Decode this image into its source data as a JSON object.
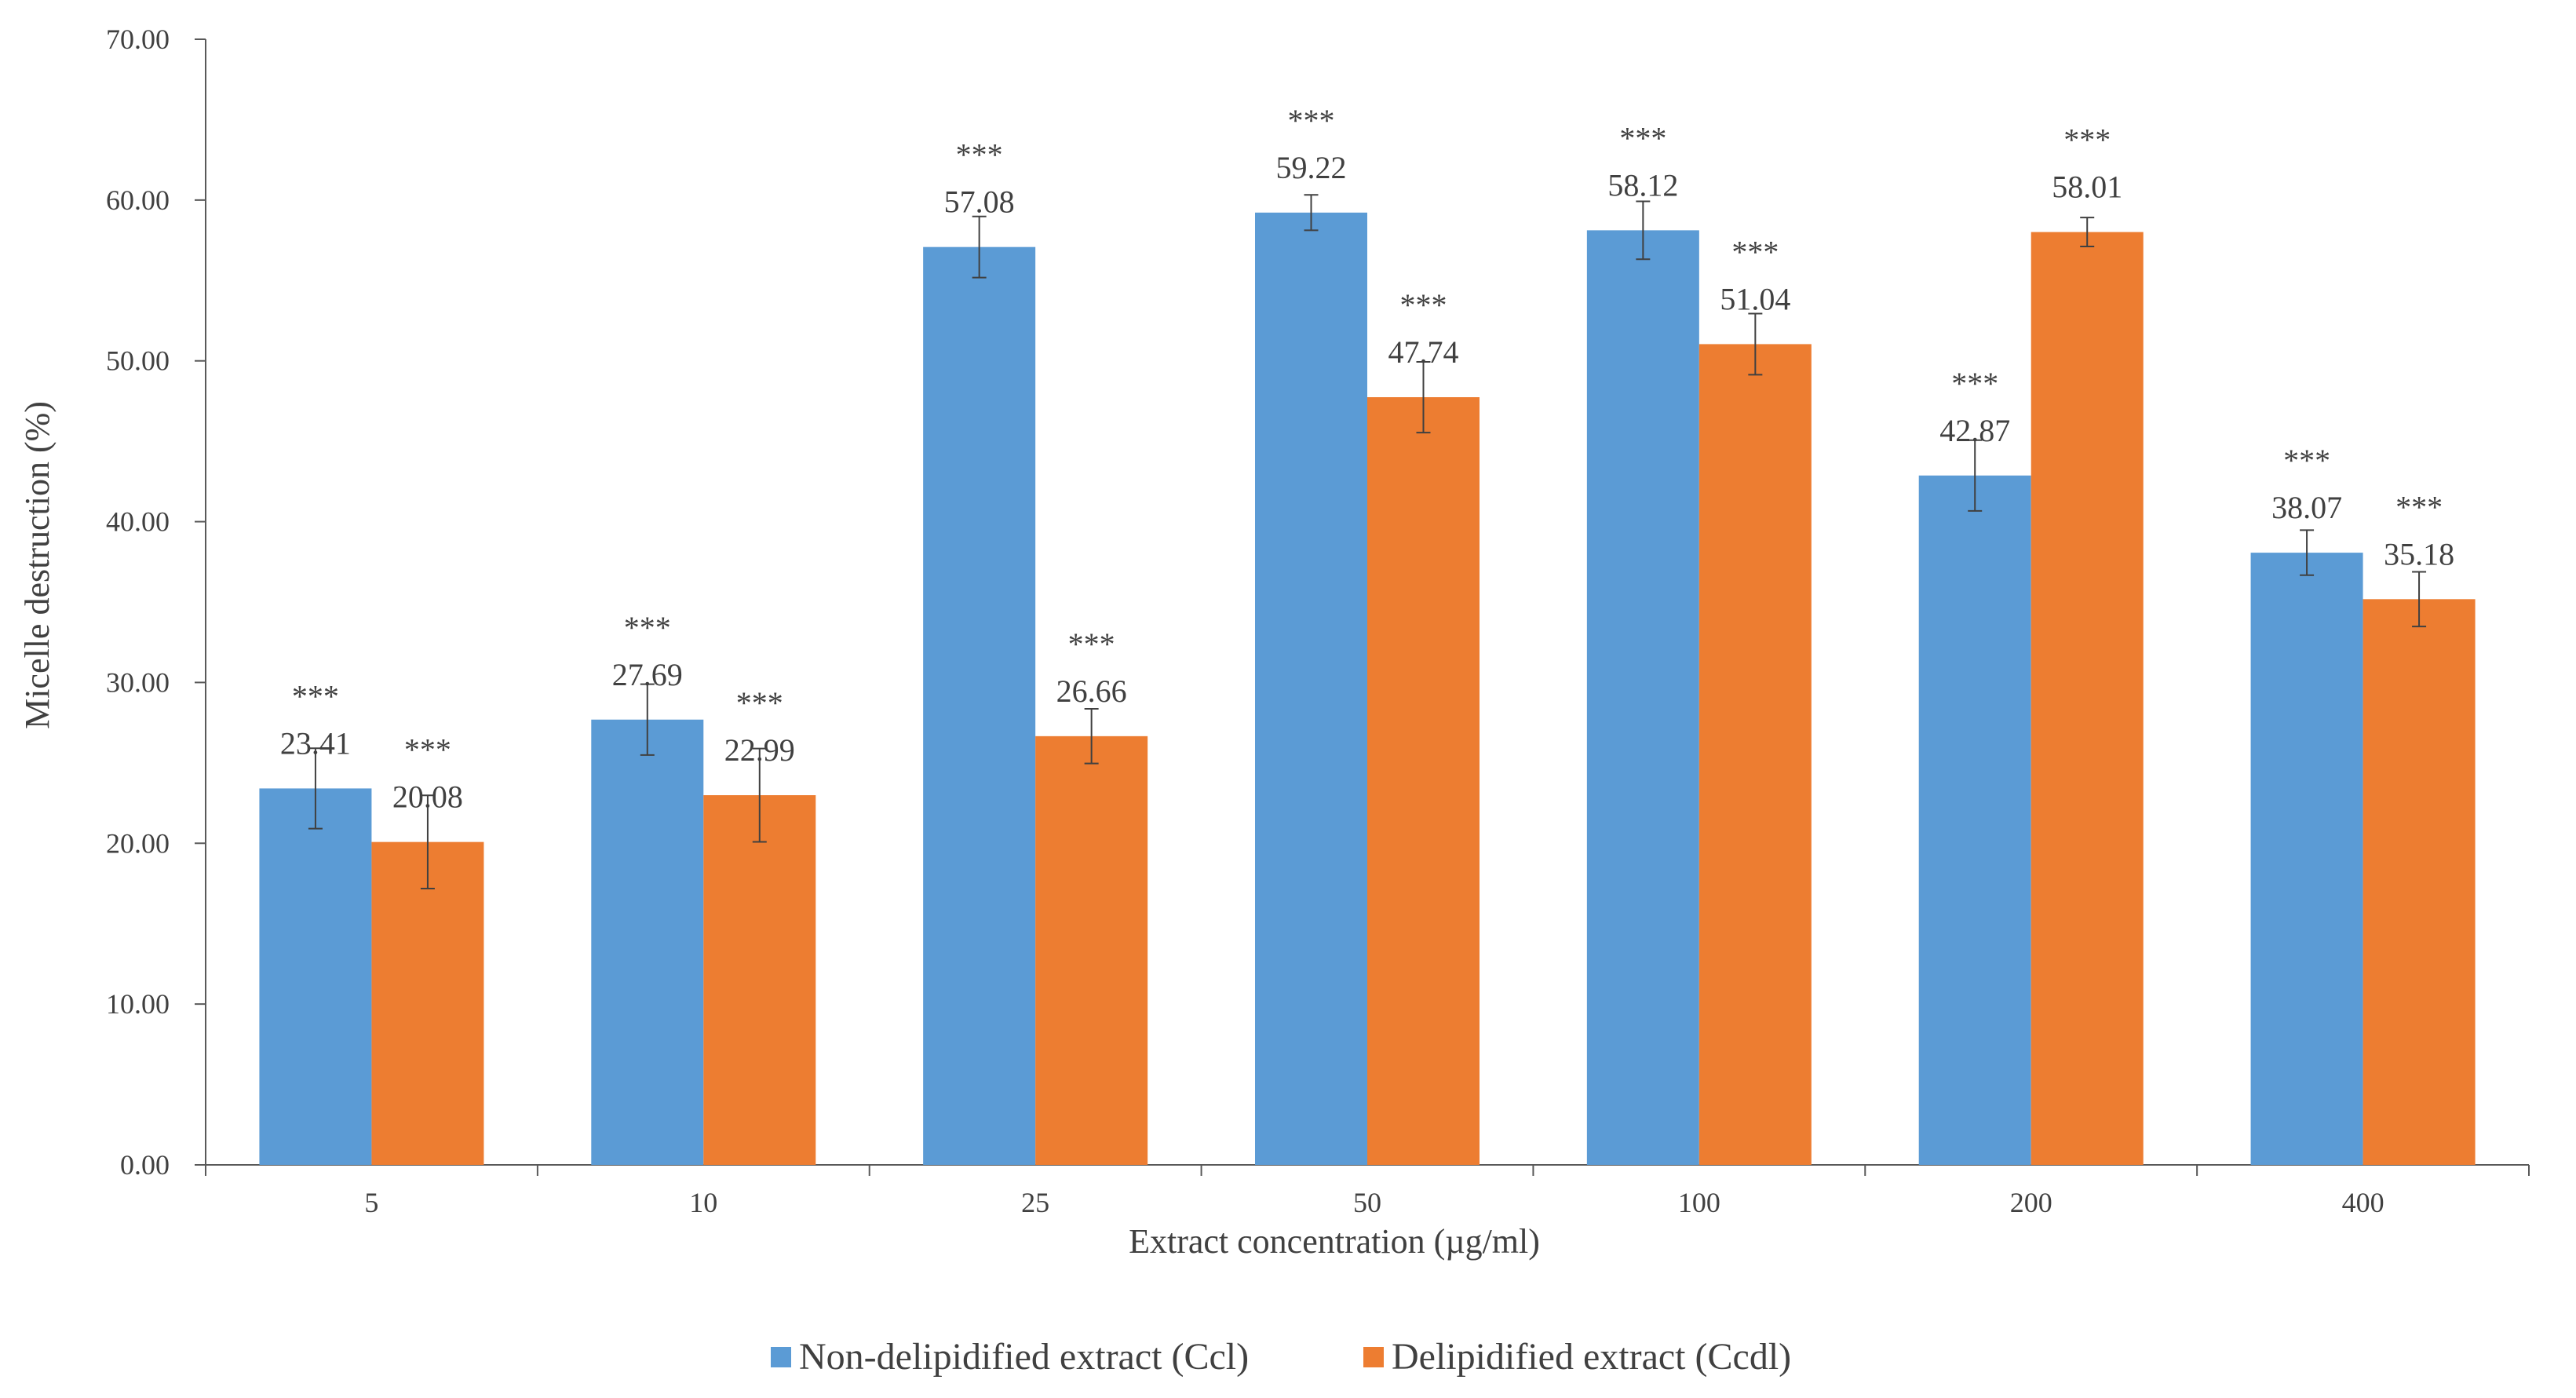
{
  "chart_data": {
    "type": "bar",
    "title": "",
    "xlabel": "Extract  concentration  (µg/ml)",
    "ylabel": "Micelle  destruction  (%)",
    "ylim": [
      0,
      70
    ],
    "yticks": [
      "0.00",
      "10.00",
      "20.00",
      "30.00",
      "40.00",
      "50.00",
      "60.00",
      "70.00"
    ],
    "categories": [
      "5",
      "10",
      "25",
      "50",
      "100",
      "200",
      "400"
    ],
    "series": [
      {
        "name": "Non-delipidified extract (Ccl)",
        "color": "#5B9BD5",
        "values": [
          23.41,
          27.69,
          57.08,
          59.22,
          58.12,
          42.87,
          38.07
        ],
        "labels": [
          "23.41",
          "27.69",
          "57.08",
          "59.22",
          "58.12",
          "42.87",
          "38.07"
        ],
        "errors": [
          2.5,
          2.2,
          1.9,
          1.1,
          1.8,
          2.2,
          1.4
        ],
        "significance": [
          "***",
          "***",
          "***",
          "***",
          "***",
          "***",
          "***"
        ]
      },
      {
        "name": "Delipidified extract (Ccdl)",
        "color": "#ED7D31",
        "values": [
          20.08,
          22.99,
          26.66,
          47.74,
          51.04,
          58.01,
          35.18
        ],
        "labels": [
          "20.08",
          "22.99",
          "26.66",
          "47.74",
          "51.04",
          "58.01",
          "35.18"
        ],
        "errors": [
          2.9,
          2.9,
          1.7,
          2.2,
          1.9,
          0.9,
          1.7
        ],
        "significance": [
          "***",
          "***",
          "***",
          "***",
          "***",
          "***",
          "***"
        ]
      }
    ],
    "legend_position": "bottom-center",
    "grid": false
  }
}
